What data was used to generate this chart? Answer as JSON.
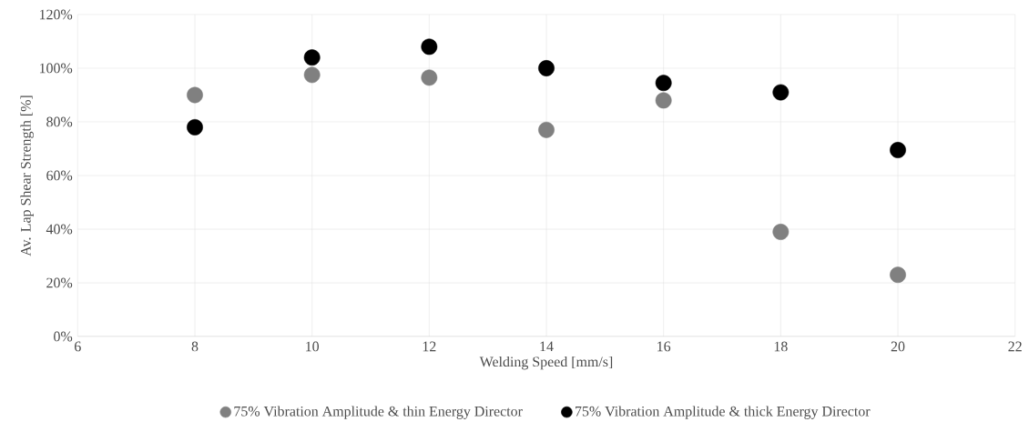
{
  "chart_data": {
    "type": "scatter",
    "xlabel": "Welding Speed [mm/s]",
    "ylabel": "Av. Lap Shear Strength [%]",
    "x": [
      8,
      10,
      12,
      14,
      16,
      18,
      20
    ],
    "series": [
      {
        "name": "75% Vibration Amplitude & thin Energy Director",
        "color": "#808080",
        "values": [
          90,
          97.5,
          96.5,
          77,
          88,
          39,
          23
        ]
      },
      {
        "name": "75% Vibration Amplitude & thick Energy Director",
        "color": "#000000",
        "values": [
          78,
          104,
          108,
          100,
          94.5,
          91,
          69.5
        ]
      }
    ],
    "xlim": [
      6,
      22
    ],
    "xticks": [
      6,
      8,
      10,
      12,
      14,
      16,
      18,
      20,
      22
    ],
    "ylim": [
      0,
      120
    ],
    "yticks": [
      {
        "value": 0,
        "label": "0%"
      },
      {
        "value": 20,
        "label": "20%"
      },
      {
        "value": 40,
        "label": "40%"
      },
      {
        "value": 60,
        "label": "60%"
      },
      {
        "value": 80,
        "label": "80%"
      },
      {
        "value": 100,
        "label": "100%"
      },
      {
        "value": 120,
        "label": "120%"
      }
    ],
    "grid": true,
    "legend": "bottom",
    "marker": "circle"
  }
}
